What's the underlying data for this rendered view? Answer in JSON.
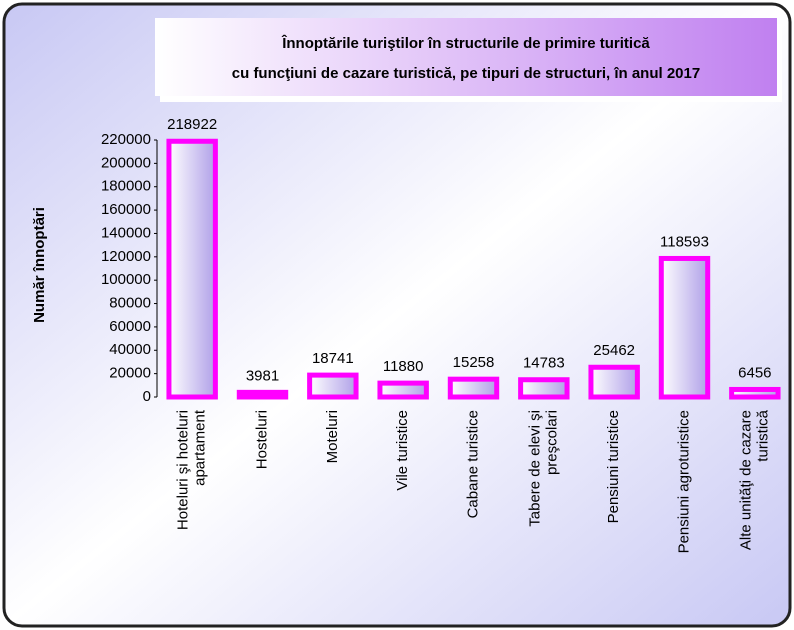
{
  "chart_data": {
    "type": "bar",
    "title": [
      "Înnoptările turiştilor în structurile de primire turitică",
      "cu funcţiuni de cazare turistică, pe tipuri de structuri, în anul 2017"
    ],
    "y_label": "Număr înnoptări",
    "categories": [
      [
        "Hoteluri şi hoteluri",
        "apartament"
      ],
      [
        "Hosteluri"
      ],
      [
        "Moteluri"
      ],
      [
        "Vile turistice"
      ],
      [
        "Cabane turistice"
      ],
      [
        "Tabere de elevi şi",
        "preşcolari"
      ],
      [
        "Pensiuni turistice"
      ],
      [
        "Pensiuni agroturistice"
      ],
      [
        "Alte unităţi de cazare",
        "turistică"
      ]
    ],
    "values": [
      218922,
      3981,
      18741,
      11880,
      15258,
      14783,
      25462,
      118593,
      6456
    ],
    "color": "#ff00ff",
    "ylim": [
      0,
      220000
    ],
    "yticks": [
      0,
      20000,
      40000,
      60000,
      80000,
      100000,
      120000,
      140000,
      160000,
      180000,
      200000,
      220000
    ]
  }
}
